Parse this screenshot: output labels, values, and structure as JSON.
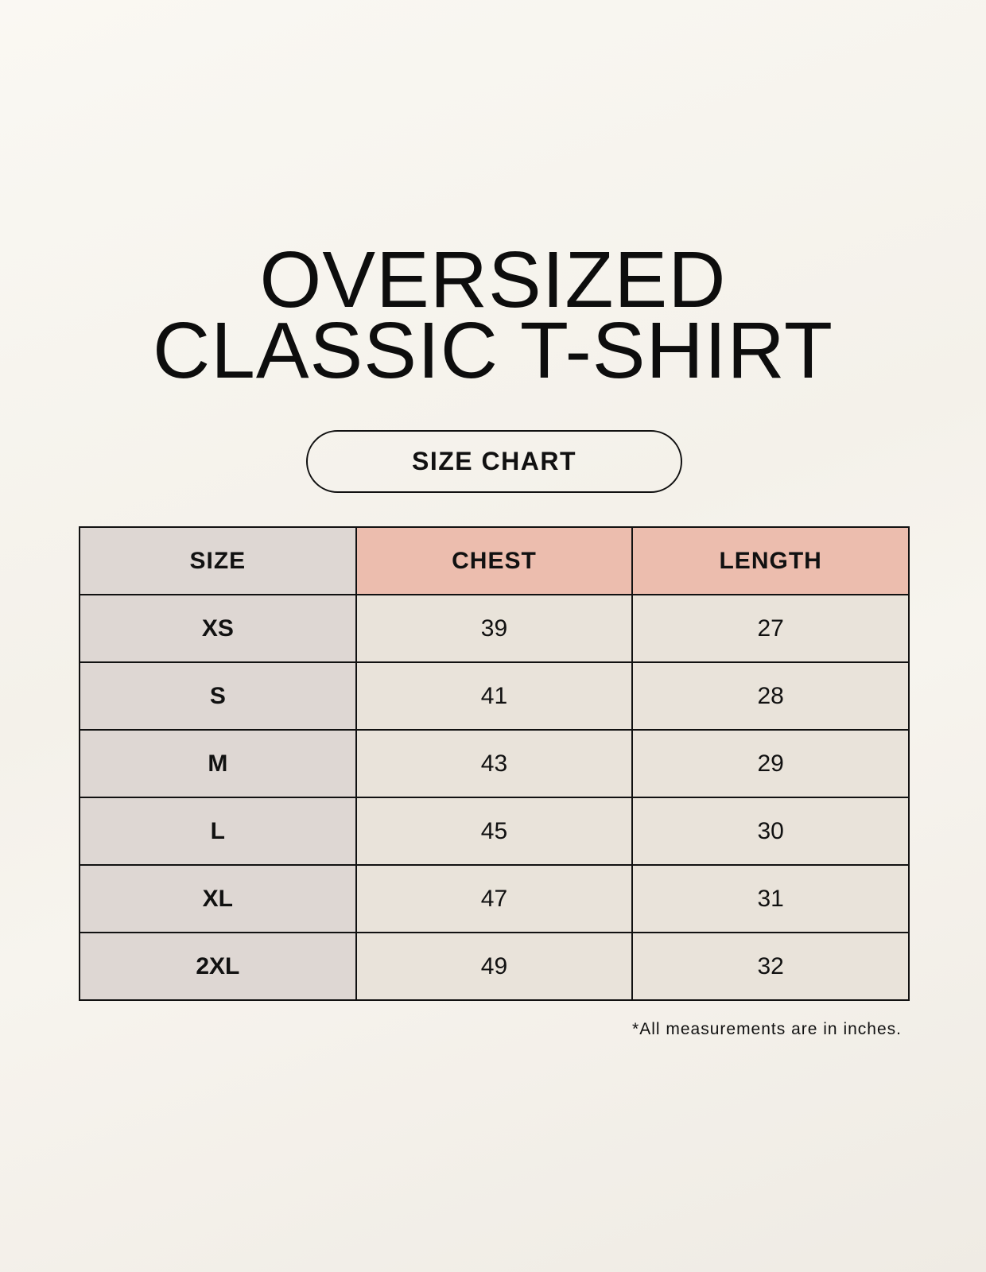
{
  "title": {
    "line1": "OVERSIZED",
    "line2": "CLASSIC T-SHIRT"
  },
  "badge": "SIZE CHART",
  "table": {
    "headers": [
      "SIZE",
      "CHEST",
      "LENGTH"
    ],
    "rows": [
      [
        "XS",
        "39",
        "27"
      ],
      [
        "S",
        "41",
        "28"
      ],
      [
        "M",
        "43",
        "29"
      ],
      [
        "L",
        "45",
        "30"
      ],
      [
        "XL",
        "47",
        "31"
      ],
      [
        "2XL",
        "49",
        "32"
      ]
    ]
  },
  "footnote": "*All measurements are in inches.",
  "colors": {
    "size_column": "#ded7d3",
    "header_accent": "#ecbdae",
    "value_cells": "#e9e3da",
    "background": "#f7f4ee"
  }
}
